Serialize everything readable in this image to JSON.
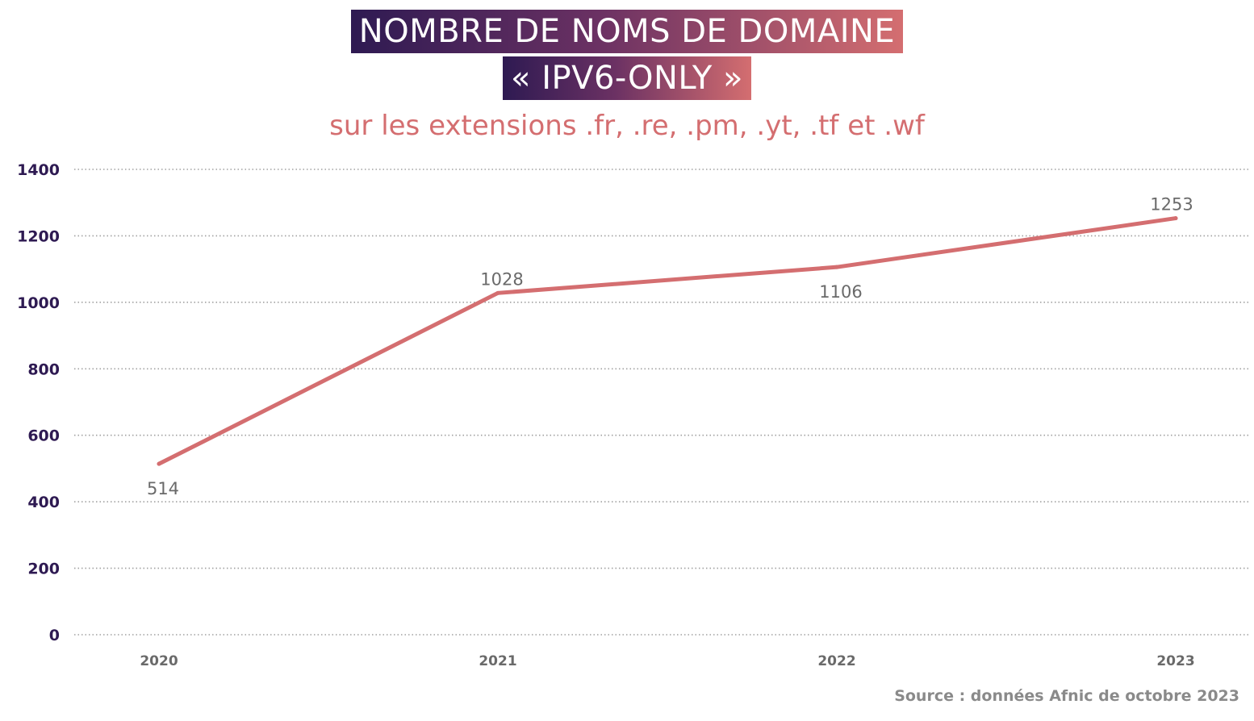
{
  "header": {
    "title_line1": "NOMBRE DE NOMS DE DOMAINE",
    "title_line2": "« IPV6-ONLY »",
    "subtitle": "sur les extensions .fr, .re, .pm, .yt, .tf et .wf"
  },
  "footer": {
    "source": "Source : données Afnic de octobre 2023"
  },
  "colors": {
    "line": "#d46e70",
    "axis_labels": "#2e1a52",
    "data_labels": "#6a6a6a",
    "grid": "#a0a0a0"
  },
  "chart_data": {
    "type": "line",
    "x": [
      "2020",
      "2021",
      "2022",
      "2023"
    ],
    "series": [
      {
        "values": [
          514,
          1028,
          1106,
          1253
        ]
      }
    ],
    "title": "NOMBRE DE NOMS DE DOMAINE « IPV6-ONLY »",
    "subtitle": "sur les extensions .fr, .re, .pm, .yt, .tf et .wf",
    "xlabel": "",
    "ylabel": "",
    "ylim": [
      0,
      1400
    ],
    "yticks": [
      0,
      200,
      400,
      600,
      800,
      1000,
      1200,
      1400
    ],
    "grid": true,
    "grid_style": "dotted",
    "data_labels": [
      "514",
      "1028",
      "1106",
      "1253"
    ]
  }
}
